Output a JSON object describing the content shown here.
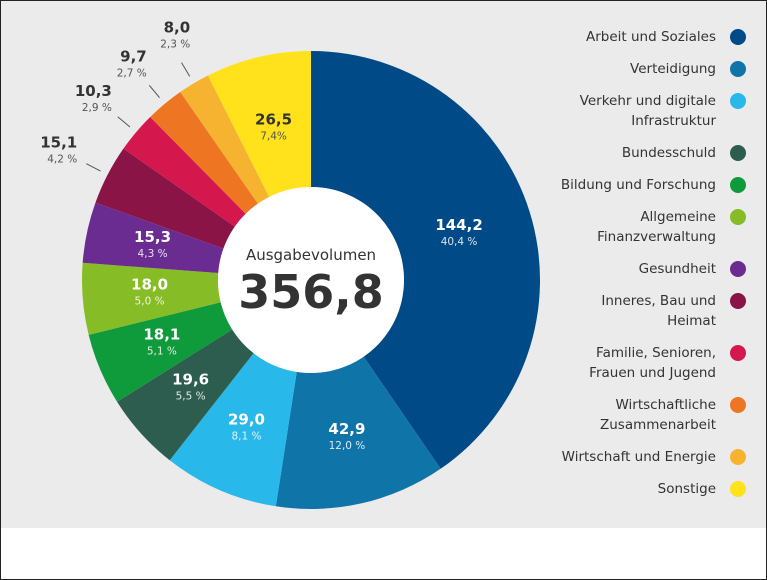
{
  "chart_data": {
    "type": "donut",
    "center_label": "Ausgabevolumen",
    "total": 356.8,
    "total_label": "356,8",
    "categories": [
      "Arbeit und Soziales",
      "Verteidigung",
      "Verkehr und digitale\nInfrastruktur",
      "Bundesschuld",
      "Bildung und Forschung",
      "Allgemeine\nFinanzverwaltung",
      "Gesundheit",
      "Inneres, Bau und\nHeimat",
      "Familie, Senioren,\nFrauen und Jugend",
      "Wirtschaftliche\nZusammenarbeit",
      "Wirtschaft und Energie",
      "Sonstige"
    ],
    "values": [
      144.2,
      42.9,
      29.0,
      19.6,
      18.1,
      18.0,
      15.3,
      15.1,
      10.3,
      9.7,
      8.0,
      26.5
    ],
    "value_labels": [
      "144,2",
      "42,9",
      "29,0",
      "19,6",
      "18,1",
      "18,0",
      "15,3",
      "15,1",
      "10,3",
      "9,7",
      "8,0",
      "26,5"
    ],
    "percent_labels": [
      "40,4 %",
      "12,0 %",
      "8,1 %",
      "5,5 %",
      "5,1 %",
      "5,0 %",
      "4,3 %",
      "4,2 %",
      "2,9 %",
      "2,7 %",
      "2,3 %",
      "7,4%"
    ],
    "colors": [
      "#004b87",
      "#0f74a8",
      "#29b8ea",
      "#2d5d4e",
      "#0f9a3c",
      "#86bc25",
      "#6b2c91",
      "#8a1445",
      "#d4184d",
      "#ee7623",
      "#f6b330",
      "#ffe11c"
    ]
  }
}
